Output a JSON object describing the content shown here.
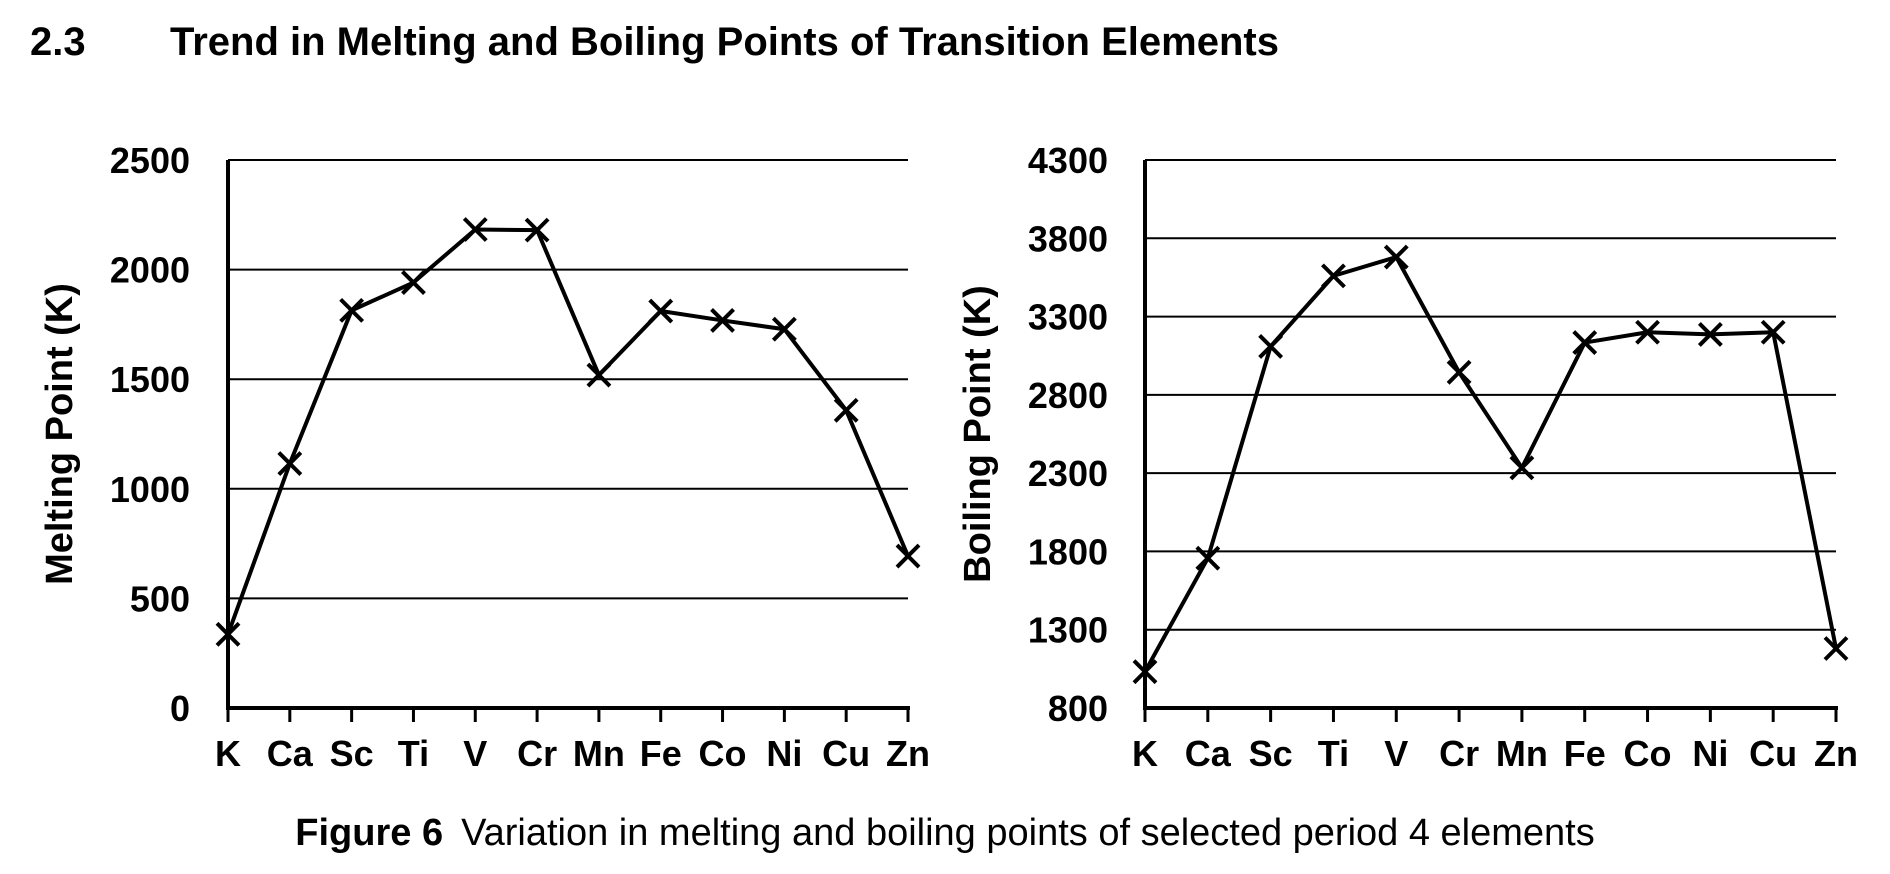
{
  "section": {
    "number": "2.3",
    "title": "Trend in Melting and Boiling Points of Transition Elements"
  },
  "caption": {
    "figure_label": "Figure 6",
    "text": "Variation in melting and boiling points of selected period 4 elements"
  },
  "chart_data": [
    {
      "type": "line",
      "categories": [
        "K",
        "Ca",
        "Sc",
        "Ti",
        "V",
        "Cr",
        "Mn",
        "Fe",
        "Co",
        "Ni",
        "Cu",
        "Zn"
      ],
      "series": [
        {
          "values": [
            336,
            1115,
            1814,
            1941,
            2183,
            2180,
            1519,
            1811,
            1768,
            1728,
            1358,
            693
          ]
        }
      ],
      "ylabel": "Melting Point (K)",
      "ylim": [
        0,
        2500
      ],
      "yticks": [
        0,
        500,
        1000,
        1500,
        2000,
        2500
      ],
      "grid": true,
      "marker": "x"
    },
    {
      "type": "line",
      "categories": [
        "K",
        "Ca",
        "Sc",
        "Ti",
        "V",
        "Cr",
        "Mn",
        "Fe",
        "Co",
        "Ni",
        "Cu",
        "Zn"
      ],
      "series": [
        {
          "values": [
            1032,
            1757,
            3109,
            3560,
            3680,
            2944,
            2334,
            3134,
            3200,
            3186,
            3200,
            1180
          ]
        }
      ],
      "ylabel": "Boiling Point (K)",
      "ylim": [
        800,
        4300
      ],
      "yticks": [
        800,
        1300,
        1800,
        2300,
        2800,
        3300,
        3800,
        4300
      ],
      "grid": true,
      "marker": "x"
    }
  ]
}
